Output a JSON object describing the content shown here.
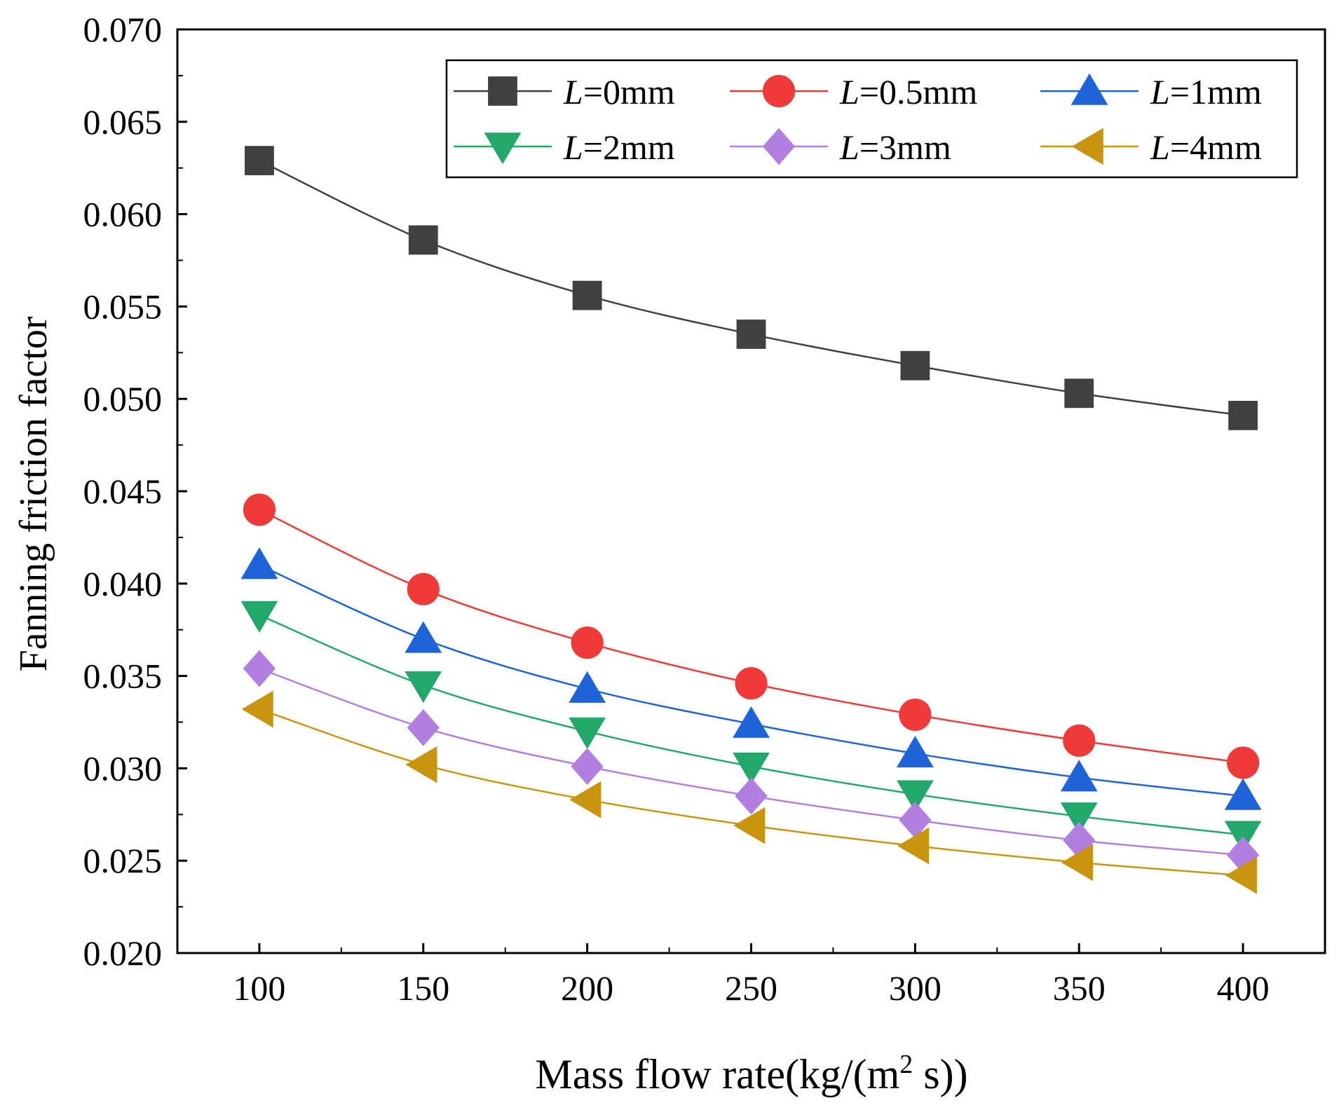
{
  "chart_data": {
    "type": "line",
    "title": "",
    "xlabel": "Mass flow rate(kg/(m",
    "xlabel_sup": "2",
    "xlabel_tail": " s))",
    "ylabel": "Fanning friction factor",
    "xlim": [
      75,
      425
    ],
    "ylim": [
      0.02,
      0.07
    ],
    "x_ticks": [
      "100",
      "150",
      "200",
      "250",
      "300",
      "350",
      "400"
    ],
    "y_ticks": [
      "0.020",
      "0.025",
      "0.030",
      "0.035",
      "0.040",
      "0.045",
      "0.050",
      "0.055",
      "0.060",
      "0.065",
      "0.070"
    ],
    "x": [
      100,
      150,
      200,
      250,
      300,
      350,
      400
    ],
    "series": [
      {
        "name": "L=0mm",
        "var": "L",
        "rest": "=0mm",
        "color": "#404040",
        "marker": "square",
        "values": [
          0.0629,
          0.0586,
          0.0556,
          0.0535,
          0.0518,
          0.0503,
          0.0491
        ]
      },
      {
        "name": "L=0.5mm",
        "var": "L",
        "rest": "=0.5mm",
        "color": "#f03a3a",
        "marker": "circle",
        "values": [
          0.044,
          0.0397,
          0.0368,
          0.0346,
          0.0329,
          0.0315,
          0.0303
        ]
      },
      {
        "name": "L=1mm",
        "var": "L",
        "rest": "=1mm",
        "color": "#1e64d8",
        "marker": "triangle-up",
        "values": [
          0.041,
          0.037,
          0.0343,
          0.0324,
          0.0308,
          0.0295,
          0.0285
        ]
      },
      {
        "name": "L=2mm",
        "var": "L",
        "rest": "=2mm",
        "color": "#22a86a",
        "marker": "triangle-down",
        "values": [
          0.0383,
          0.0345,
          0.032,
          0.0301,
          0.0286,
          0.0274,
          0.0264
        ]
      },
      {
        "name": "L=3mm",
        "var": "L",
        "rest": "=3mm",
        "color": "#b07fe0",
        "marker": "diamond",
        "values": [
          0.0354,
          0.0322,
          0.0301,
          0.0285,
          0.0272,
          0.0261,
          0.0253
        ]
      },
      {
        "name": "L=4mm",
        "var": "L",
        "rest": "=4mm",
        "color": "#c9950f",
        "marker": "triangle-left",
        "values": [
          0.0332,
          0.0302,
          0.0283,
          0.0269,
          0.0258,
          0.0249,
          0.0242
        ]
      }
    ],
    "legend": {
      "placement": "top-right",
      "columns": 3
    },
    "grid": false
  }
}
